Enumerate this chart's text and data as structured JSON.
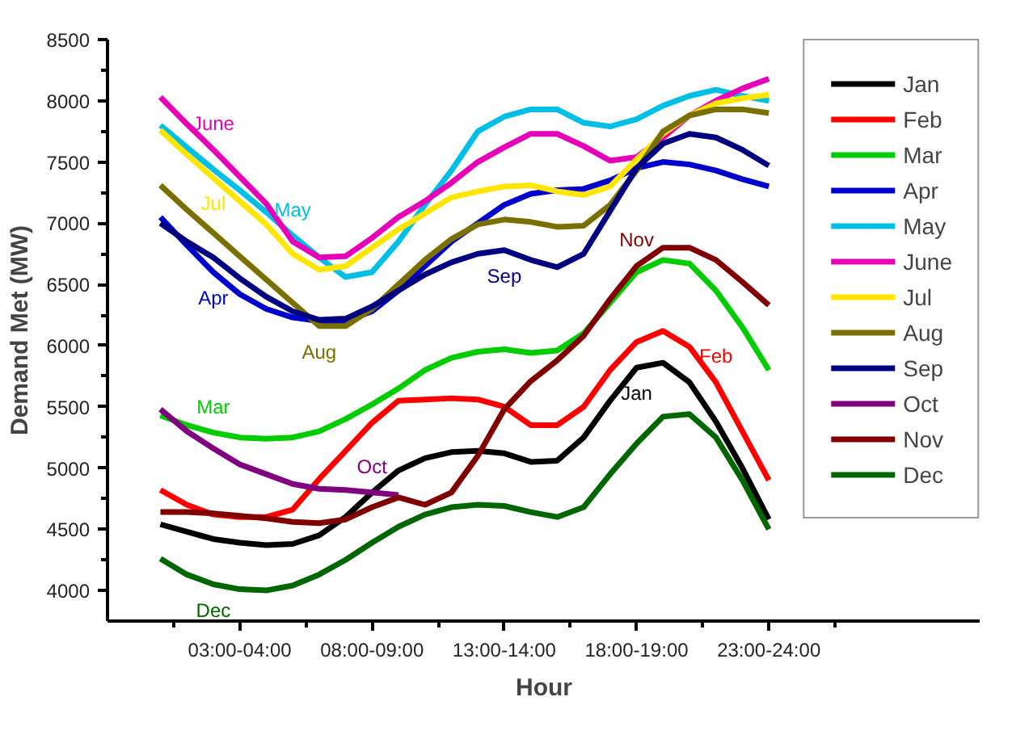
{
  "chart_data": {
    "type": "line",
    "xlabel": "Hour",
    "ylabel": "Demand Met (MW)",
    "categories": [
      null,
      null,
      null,
      "03:00-04:00",
      null,
      null,
      null,
      null,
      "08:00-09:00",
      null,
      null,
      null,
      null,
      "13:00-14:00",
      null,
      null,
      null,
      null,
      "18:00-19:00",
      null,
      null,
      null,
      null,
      "23:00-24:00"
    ],
    "ylim": [
      3750,
      8500
    ],
    "yticks": [
      4000,
      4500,
      5000,
      5500,
      6000,
      6500,
      7000,
      7500,
      8000,
      8500
    ],
    "grid": false,
    "legend": "right",
    "line_style": "solid",
    "marker": "none",
    "series": [
      {
        "name": "Jan",
        "color": "#000000",
        "values": [
          4540,
          4480,
          4420,
          4390,
          4370,
          4380,
          4450,
          4600,
          4800,
          4980,
          5080,
          5130,
          5140,
          5120,
          5050,
          5060,
          5250,
          5550,
          5820,
          5860,
          5700,
          5380,
          5000,
          4580
        ]
      },
      {
        "name": "Feb",
        "color": "#ff0000",
        "values": [
          4820,
          4700,
          4620,
          4600,
          4600,
          4660,
          4910,
          5140,
          5370,
          5550,
          5560,
          5570,
          5560,
          5500,
          5350,
          5350,
          5500,
          5800,
          6030,
          6120,
          5990,
          5700,
          5300,
          4900
        ]
      },
      {
        "name": "Mar",
        "color": "#00cc00",
        "values": [
          5430,
          5350,
          5290,
          5250,
          5240,
          5250,
          5300,
          5400,
          5520,
          5650,
          5800,
          5900,
          5950,
          5970,
          5940,
          5960,
          6100,
          6350,
          6600,
          6700,
          6670,
          6450,
          6150,
          5800
        ]
      },
      {
        "name": "Apr",
        "color": "#0000cc",
        "values": [
          7050,
          6820,
          6600,
          6420,
          6300,
          6230,
          6200,
          6200,
          6280,
          6450,
          6650,
          6850,
          7000,
          7150,
          7240,
          7270,
          7280,
          7350,
          7450,
          7500,
          7480,
          7430,
          7360,
          7300
        ]
      },
      {
        "name": "May",
        "color": "#00bfe6",
        "values": [
          7800,
          7620,
          7440,
          7270,
          7090,
          6900,
          6720,
          6560,
          6600,
          6850,
          7150,
          7430,
          7750,
          7870,
          7930,
          7930,
          7820,
          7790,
          7850,
          7960,
          8040,
          8090,
          8040,
          8000
        ]
      },
      {
        "name": "June",
        "color": "#e600b8",
        "values": [
          8030,
          7810,
          7600,
          7380,
          7160,
          6850,
          6720,
          6730,
          6880,
          7050,
          7180,
          7330,
          7500,
          7620,
          7730,
          7730,
          7630,
          7510,
          7540,
          7700,
          7880,
          8000,
          8100,
          8180
        ]
      },
      {
        "name": "Jul",
        "color": "#ffe600",
        "values": [
          7760,
          7560,
          7370,
          7180,
          6990,
          6750,
          6620,
          6650,
          6800,
          6950,
          7080,
          7210,
          7260,
          7300,
          7310,
          7260,
          7230,
          7300,
          7520,
          7730,
          7880,
          7980,
          8020,
          8050
        ]
      },
      {
        "name": "Aug",
        "color": "#7a7000",
        "values": [
          7310,
          7110,
          6920,
          6730,
          6540,
          6350,
          6160,
          6160,
          6300,
          6500,
          6700,
          6870,
          6990,
          7030,
          7010,
          6970,
          6980,
          7150,
          7430,
          7750,
          7880,
          7930,
          7930,
          7900
        ]
      },
      {
        "name": "Sep",
        "color": "#000080",
        "values": [
          7000,
          6850,
          6720,
          6550,
          6400,
          6280,
          6210,
          6220,
          6320,
          6450,
          6580,
          6680,
          6750,
          6780,
          6700,
          6640,
          6750,
          7100,
          7450,
          7650,
          7730,
          7700,
          7600,
          7470
        ]
      },
      {
        "name": "Oct",
        "color": "#800080",
        "values": [
          5480,
          5300,
          5160,
          5030,
          4950,
          4870,
          4830,
          4820,
          4800,
          4780,
          null,
          null,
          null,
          null,
          null,
          null,
          null,
          null,
          null,
          null,
          null,
          null,
          null,
          null
        ]
      },
      {
        "name": "Nov",
        "color": "#800000",
        "values": [
          4640,
          4640,
          4630,
          4610,
          4590,
          4560,
          4550,
          4580,
          4680,
          4760,
          4700,
          4800,
          5100,
          5480,
          5710,
          5880,
          6080,
          6380,
          6650,
          6800,
          6800,
          6700,
          6520,
          6330
        ]
      },
      {
        "name": "Dec",
        "color": "#006600",
        "values": [
          4260,
          4130,
          4050,
          4010,
          4000,
          4040,
          4130,
          4250,
          4390,
          4520,
          4620,
          4680,
          4700,
          4690,
          4640,
          4600,
          4680,
          4950,
          5200,
          5420,
          5440,
          5250,
          4900,
          4500
        ]
      }
    ]
  }
}
